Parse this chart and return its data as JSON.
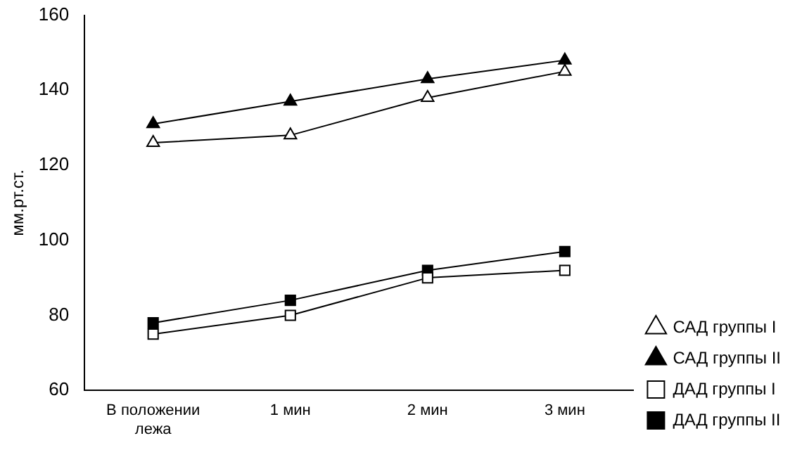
{
  "chart_data": {
    "type": "line",
    "ylabel": "мм.рт.ст.",
    "categories": [
      "В положении лежа",
      "1 мин",
      "2 мин",
      "3 мин"
    ],
    "series": [
      {
        "name": "САД группы I",
        "color": "#000000",
        "marker": "triangle",
        "colors": [
          "#ffffff",
          "#ffffff",
          "#ffffff",
          "#ffffff"
        ],
        "values": [
          126,
          128,
          138,
          145
        ]
      },
      {
        "name": "САД группы II",
        "color": "#000000",
        "marker": "triangle",
        "colors": [
          "#000000",
          "#000000",
          "#000000",
          "#000000"
        ],
        "values": [
          131,
          137,
          143,
          148
        ]
      },
      {
        "name": "ДАД группы I",
        "color": "#000000",
        "marker": "square",
        "colors": [
          "#ffffff",
          "#ffffff",
          "#ffffff",
          "#ffffff"
        ],
        "values": [
          75,
          80,
          90,
          92
        ]
      },
      {
        "name": "ДАД группы II",
        "color": "#000000",
        "marker": "square",
        "colors": [
          "#000000",
          "#000000",
          "#000000",
          "#000000"
        ],
        "values": [
          78,
          84,
          92,
          97
        ]
      }
    ],
    "ylim": [
      60,
      160
    ],
    "yticks": [
      60,
      80,
      100,
      120,
      140,
      160
    ],
    "grid": false,
    "legend": "right"
  }
}
